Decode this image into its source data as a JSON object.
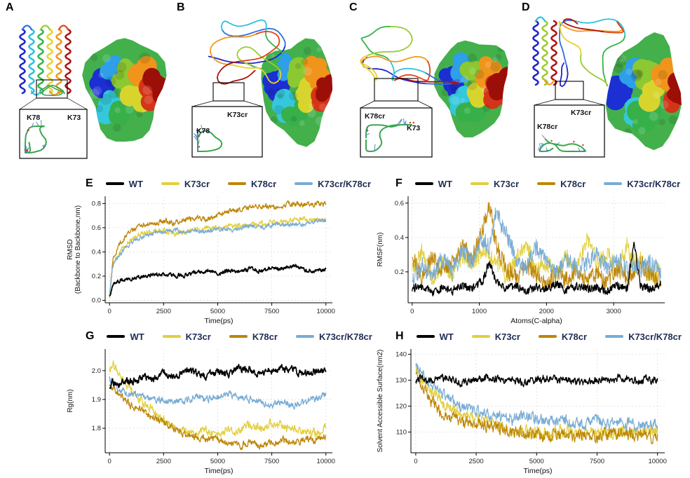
{
  "figure": {
    "background": "#ffffff",
    "panels_top": [
      {
        "label": "A",
        "inset_labels": [
          "K78",
          "K73"
        ]
      },
      {
        "label": "B",
        "inset_labels": [
          "K78",
          "K73cr"
        ]
      },
      {
        "label": "C",
        "inset_labels": [
          "K78cr",
          "K73"
        ]
      },
      {
        "label": "D",
        "inset_labels": [
          "K78cr",
          "K73cr"
        ]
      }
    ],
    "legend": {
      "text_color": "#1f2d54",
      "entries": [
        {
          "name": "WT",
          "color": "#000000"
        },
        {
          "name": "K73cr",
          "color": "#e2cf3e"
        },
        {
          "name": "K78cr",
          "color": "#bd8608"
        },
        {
          "name": "K73cr/K78cr",
          "color": "#79acd4"
        }
      ]
    }
  },
  "chart_data": [
    {
      "panel": "E",
      "type": "line",
      "xlabel": "Time(ps)",
      "ylabel_lines": [
        "RMSD",
        "(Backbone to Backbone,nm)"
      ],
      "xlim": [
        -200,
        10300
      ],
      "ylim": [
        -0.02,
        0.86
      ],
      "xticks": [
        0,
        2500,
        5000,
        7500,
        10000
      ],
      "xtick_labels": [
        "0",
        "2500",
        "5000",
        "7500",
        "10000"
      ],
      "yticks": [
        0.0,
        0.2,
        0.4,
        0.6,
        0.8
      ],
      "ytick_labels": [
        "0.0",
        "0.2",
        "0.4",
        "0.6",
        "0.8"
      ],
      "x": [
        0,
        150,
        400,
        700,
        1000,
        1500,
        2000,
        2500,
        3000,
        3500,
        4000,
        4500,
        5000,
        5500,
        6000,
        6500,
        7000,
        7500,
        8000,
        8500,
        9000,
        9500,
        10000
      ],
      "series": [
        {
          "name": "WT",
          "color": "#000000",
          "noise": 0.013,
          "y": [
            0.03,
            0.13,
            0.16,
            0.17,
            0.18,
            0.2,
            0.21,
            0.22,
            0.2,
            0.21,
            0.23,
            0.24,
            0.22,
            0.25,
            0.24,
            0.26,
            0.24,
            0.27,
            0.26,
            0.29,
            0.25,
            0.24,
            0.25
          ]
        },
        {
          "name": "K73cr",
          "color": "#e2cf3e",
          "noise": 0.018,
          "y": [
            0.03,
            0.3,
            0.38,
            0.45,
            0.5,
            0.55,
            0.57,
            0.58,
            0.55,
            0.57,
            0.59,
            0.6,
            0.59,
            0.61,
            0.62,
            0.63,
            0.63,
            0.64,
            0.65,
            0.66,
            0.67,
            0.66,
            0.67
          ]
        },
        {
          "name": "K78cr",
          "color": "#bd8608",
          "noise": 0.018,
          "y": [
            0.03,
            0.33,
            0.45,
            0.52,
            0.57,
            0.62,
            0.64,
            0.66,
            0.64,
            0.67,
            0.68,
            0.67,
            0.7,
            0.73,
            0.75,
            0.77,
            0.78,
            0.77,
            0.79,
            0.8,
            0.8,
            0.79,
            0.8
          ]
        },
        {
          "name": "K73cr/K78cr",
          "color": "#79acd4",
          "noise": 0.016,
          "y": [
            0.03,
            0.28,
            0.36,
            0.43,
            0.47,
            0.52,
            0.55,
            0.57,
            0.58,
            0.56,
            0.58,
            0.57,
            0.59,
            0.58,
            0.6,
            0.61,
            0.6,
            0.62,
            0.63,
            0.62,
            0.63,
            0.65,
            0.66
          ]
        }
      ]
    },
    {
      "panel": "F",
      "type": "line",
      "xlabel": "Atoms(C-alpha)",
      "ylabel_lines": [
        "RMSF(nm)"
      ],
      "xlim": [
        -60,
        3760
      ],
      "ylim": [
        0.02,
        0.64
      ],
      "xticks": [
        0,
        1000,
        2000,
        3000
      ],
      "xtick_labels": [
        "0",
        "1000",
        "2000",
        "3000"
      ],
      "yticks": [
        0.2,
        0.4,
        0.6
      ],
      "ytick_labels": [
        "0.2",
        "0.4",
        "0.6"
      ],
      "x": [
        0,
        150,
        300,
        450,
        600,
        750,
        900,
        1050,
        1150,
        1250,
        1400,
        1550,
        1700,
        1850,
        2000,
        2150,
        2300,
        2450,
        2600,
        2750,
        2900,
        3050,
        3200,
        3300,
        3400,
        3550,
        3700
      ],
      "series": [
        {
          "name": "WT",
          "color": "#000000",
          "noise": 0.022,
          "y": [
            0.1,
            0.12,
            0.08,
            0.11,
            0.09,
            0.12,
            0.1,
            0.15,
            0.26,
            0.14,
            0.1,
            0.12,
            0.09,
            0.11,
            0.1,
            0.13,
            0.09,
            0.12,
            0.1,
            0.11,
            0.09,
            0.12,
            0.1,
            0.37,
            0.12,
            0.1,
            0.13
          ]
        },
        {
          "name": "K73cr",
          "color": "#e2cf3e",
          "noise": 0.05,
          "y": [
            0.2,
            0.32,
            0.16,
            0.25,
            0.18,
            0.3,
            0.22,
            0.35,
            0.3,
            0.25,
            0.18,
            0.28,
            0.35,
            0.2,
            0.25,
            0.17,
            0.3,
            0.22,
            0.4,
            0.25,
            0.32,
            0.2,
            0.35,
            0.25,
            0.28,
            0.18,
            0.22
          ]
        },
        {
          "name": "K78cr",
          "color": "#bd8608",
          "noise": 0.05,
          "y": [
            0.28,
            0.16,
            0.3,
            0.2,
            0.26,
            0.34,
            0.28,
            0.45,
            0.6,
            0.35,
            0.22,
            0.16,
            0.24,
            0.18,
            0.12,
            0.2,
            0.15,
            0.22,
            0.16,
            0.2,
            0.14,
            0.22,
            0.16,
            0.2,
            0.25,
            0.18,
            0.15
          ]
        },
        {
          "name": "K73cr/K78cr",
          "color": "#79acd4",
          "noise": 0.05,
          "y": [
            0.15,
            0.24,
            0.18,
            0.28,
            0.2,
            0.32,
            0.25,
            0.4,
            0.35,
            0.55,
            0.42,
            0.28,
            0.22,
            0.35,
            0.25,
            0.2,
            0.28,
            0.22,
            0.25,
            0.3,
            0.22,
            0.28,
            0.2,
            0.25,
            0.22,
            0.26,
            0.18
          ]
        }
      ]
    },
    {
      "panel": "G",
      "type": "line",
      "xlabel": "Time(ps)",
      "ylabel_lines": [
        "Rg(nm)"
      ],
      "xlim": [
        -200,
        10300
      ],
      "ylim": [
        1.715,
        2.075
      ],
      "xticks": [
        0,
        2500,
        5000,
        7500,
        10000
      ],
      "xtick_labels": [
        "0",
        "2500",
        "5000",
        "7500",
        "10000"
      ],
      "yticks": [
        1.8,
        1.9,
        2.0
      ],
      "ytick_labels": [
        "1.8",
        "1.9",
        "2.0"
      ],
      "x": [
        0,
        150,
        400,
        700,
        1000,
        1500,
        2000,
        2500,
        3000,
        3500,
        4000,
        4500,
        5000,
        5500,
        6000,
        6500,
        7000,
        7500,
        8000,
        8500,
        9000,
        9500,
        10000
      ],
      "series": [
        {
          "name": "WT",
          "color": "#000000",
          "noise": 0.01,
          "y": [
            1.93,
            1.96,
            1.95,
            1.97,
            1.96,
            1.98,
            1.97,
            1.99,
            1.98,
            2.0,
            1.99,
            1.98,
            2.0,
            1.99,
            2.01,
            2.0,
            1.99,
            2.0,
            2.01,
            2.0,
            1.99,
            2.0,
            2.0
          ]
        },
        {
          "name": "K73cr",
          "color": "#e2cf3e",
          "noise": 0.012,
          "y": [
            2.0,
            2.03,
            1.99,
            1.96,
            1.93,
            1.89,
            1.86,
            1.83,
            1.8,
            1.79,
            1.78,
            1.79,
            1.78,
            1.8,
            1.79,
            1.81,
            1.8,
            1.82,
            1.81,
            1.8,
            1.79,
            1.78,
            1.81
          ]
        },
        {
          "name": "K78cr",
          "color": "#bd8608",
          "noise": 0.01,
          "y": [
            1.95,
            1.94,
            1.92,
            1.9,
            1.88,
            1.86,
            1.84,
            1.82,
            1.8,
            1.78,
            1.77,
            1.76,
            1.76,
            1.75,
            1.74,
            1.75,
            1.74,
            1.75,
            1.76,
            1.75,
            1.76,
            1.76,
            1.77
          ]
        },
        {
          "name": "K73cr/K78cr",
          "color": "#79acd4",
          "noise": 0.01,
          "y": [
            1.97,
            1.96,
            1.94,
            1.93,
            1.92,
            1.91,
            1.9,
            1.9,
            1.89,
            1.9,
            1.91,
            1.9,
            1.91,
            1.92,
            1.91,
            1.9,
            1.89,
            1.88,
            1.89,
            1.88,
            1.89,
            1.9,
            1.92
          ]
        }
      ]
    },
    {
      "panel": "H",
      "type": "line",
      "xlabel": "Time(ps)",
      "ylabel_lines": [
        "Solvent Accessible Surface(nm2)"
      ],
      "xlim": [
        -200,
        10300
      ],
      "ylim": [
        102,
        142
      ],
      "xticks": [
        0,
        2500,
        5000,
        7500,
        10000
      ],
      "xtick_labels": [
        "0",
        "2500",
        "5000",
        "7500",
        "10000"
      ],
      "yticks": [
        110,
        120,
        130,
        140
      ],
      "ytick_labels": [
        "110",
        "120",
        "130",
        "140"
      ],
      "x": [
        0,
        150,
        400,
        700,
        1000,
        1500,
        2000,
        2500,
        3000,
        3500,
        4000,
        4500,
        5000,
        5500,
        6000,
        6500,
        7000,
        7500,
        8000,
        8500,
        9000,
        9500,
        10000
      ],
      "series": [
        {
          "name": "WT",
          "color": "#000000",
          "noise": 1.2,
          "y": [
            130,
            131,
            130,
            130,
            131,
            130,
            129,
            130,
            131,
            130,
            130,
            129,
            130,
            131,
            130,
            130,
            129,
            130,
            130,
            131,
            130,
            130,
            130
          ]
        },
        {
          "name": "K73cr",
          "color": "#e2cf3e",
          "noise": 2.0,
          "y": [
            135,
            132,
            128,
            125,
            122,
            119,
            117,
            115,
            113,
            112,
            111,
            110,
            110,
            109,
            110,
            111,
            110,
            109,
            110,
            111,
            110,
            110,
            111
          ]
        },
        {
          "name": "K78cr",
          "color": "#bd8608",
          "noise": 2.0,
          "y": [
            132,
            129,
            125,
            121,
            118,
            116,
            114,
            113,
            112,
            111,
            110,
            109,
            109,
            108,
            109,
            108,
            109,
            108,
            109,
            110,
            109,
            108,
            109
          ]
        },
        {
          "name": "K73cr/K78cr",
          "color": "#79acd4",
          "noise": 1.8,
          "y": [
            136,
            134,
            131,
            128,
            125,
            122,
            120,
            118,
            117,
            116,
            115,
            116,
            115,
            114,
            115,
            114,
            113,
            114,
            113,
            114,
            113,
            112,
            113
          ]
        }
      ]
    }
  ]
}
